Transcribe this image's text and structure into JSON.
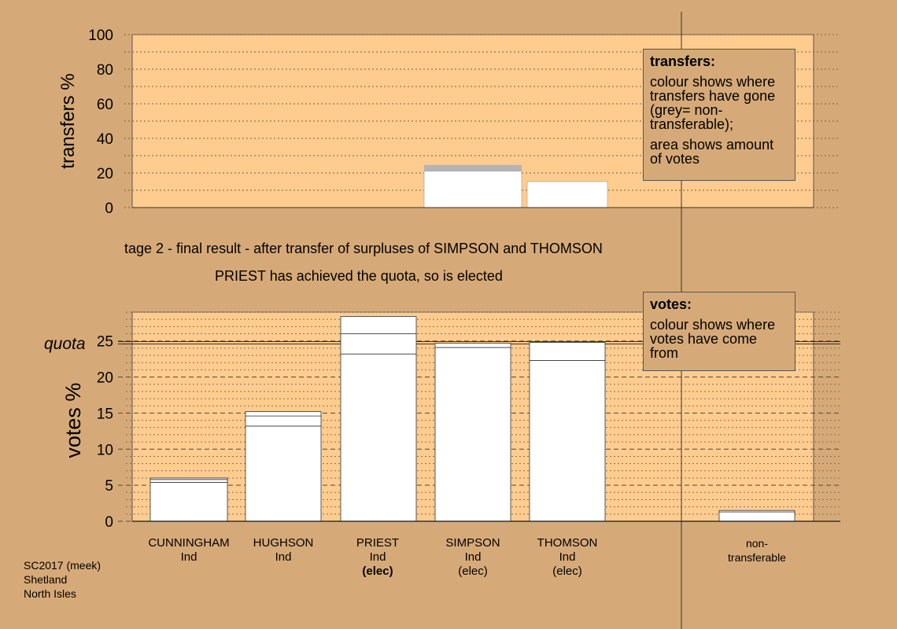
{
  "header": {
    "stage_line": "tage 2 - final result - after transfer of surpluses of SIMPSON and THOMSON",
    "elected_line": "PRIEST has achieved the quota, so is elected"
  },
  "legend_transfers": {
    "title": "transfers:",
    "body1": "colour shows where transfers have gone (grey= non-transferable);",
    "body2": "area shows amount of votes"
  },
  "legend_votes": {
    "title": "votes:",
    "body": "colour shows where votes have come from"
  },
  "candidates": [
    {
      "name": "CUNNINGHAM",
      "party": "Ind",
      "status": ""
    },
    {
      "name": "HUGHSON",
      "party": "Ind",
      "status": ""
    },
    {
      "name": "PRIEST",
      "party": "Ind",
      "status": "(elec)"
    },
    {
      "name": "SIMPSON",
      "party": "Ind",
      "status": "(elec)"
    },
    {
      "name": "THOMSON",
      "party": "Ind",
      "status": "(elec)"
    },
    {
      "name": "non-",
      "party": "transferable",
      "status": ""
    }
  ],
  "footer": {
    "line1": "SC2017 (meek)",
    "line2": "Shetland",
    "line3": "North Isles"
  },
  "colors": {
    "background": "#d6aa78",
    "plot_area": "#ffcc90",
    "bars": "#ffffff",
    "non_transferable": "#b4b4b4"
  },
  "chart_data": [
    {
      "type": "bar",
      "ylabel": "transfers %",
      "ylim": [
        0,
        100
      ],
      "yticks": [
        "0",
        "20",
        "40",
        "60",
        "80",
        "100"
      ],
      "bars": [
        {
          "candidate": "PRIEST",
          "total": 24.7,
          "grey_top": true,
          "segments": [
            21.0,
            3.7
          ]
        },
        {
          "candidate": "SIMPSON",
          "total": 15.0,
          "grey_top": false,
          "segments": [
            15.0
          ]
        }
      ]
    },
    {
      "type": "bar",
      "ylabel": "votes %",
      "ylim": [
        0,
        29
      ],
      "yticks": [
        "0",
        "5",
        "10",
        "15",
        "20",
        "25"
      ],
      "quota_label": "quota",
      "quota": 24.75,
      "categories": [
        "CUNNINGHAM",
        "HUGHSON",
        "PRIEST",
        "SIMPSON",
        "THOMSON",
        "non-transferable"
      ],
      "stacks": [
        [
          5.4,
          0.4,
          0.2
        ],
        [
          13.2,
          1.4,
          0.6
        ],
        [
          23.2,
          2.8,
          2.4
        ],
        [
          24.1,
          0.6
        ],
        [
          22.3,
          2.5
        ],
        [
          1.3,
          0.2
        ]
      ]
    }
  ]
}
